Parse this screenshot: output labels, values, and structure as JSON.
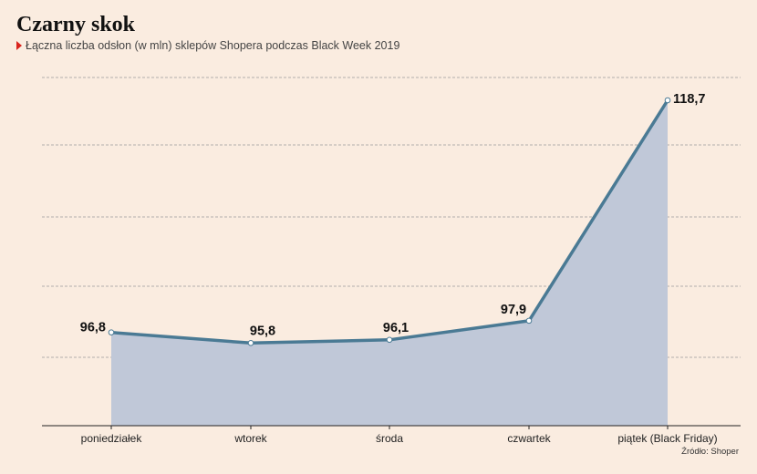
{
  "title": "Czarny skok",
  "subtitle": "Łączna liczba odsłon (w mln) sklepów Shopera podczas Black Week 2019",
  "source": "Źródło: Shoper",
  "colors": {
    "background": "#faece0",
    "line": "#4a7a94",
    "area": "#c0c8d8",
    "accent": "#d9231c",
    "grid": "#999999"
  },
  "chart_data": {
    "type": "area",
    "categories": [
      "poniedziałek",
      "wtorek",
      "środa",
      "czwartek",
      "piątek (Black Friday)"
    ],
    "series": [
      {
        "values": [
          96.8,
          95.8,
          96.1,
          97.9,
          118.7
        ],
        "labels": [
          "96,8",
          "95,8",
          "96,1",
          "97,9",
          "118,7"
        ]
      }
    ],
    "ylim": [
      88,
      123
    ],
    "grid": true,
    "legend": "none"
  }
}
